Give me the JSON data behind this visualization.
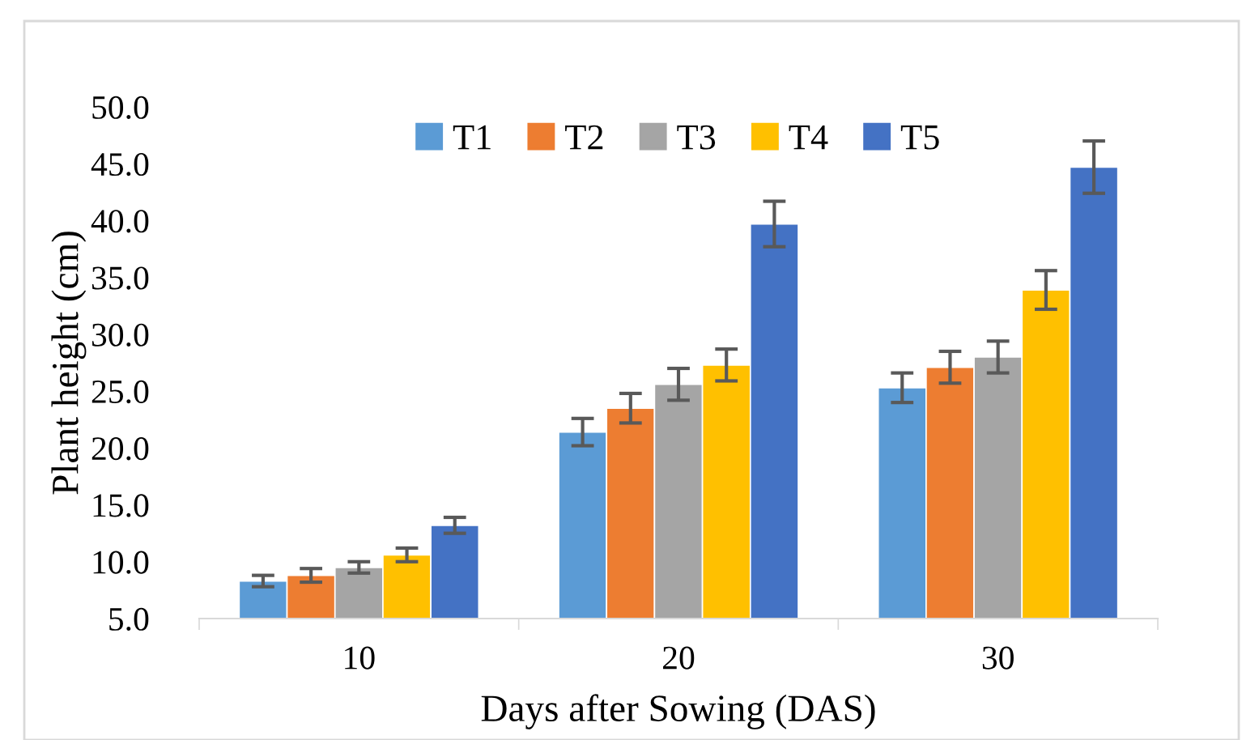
{
  "chart_data": {
    "type": "bar",
    "xlabel": "Days after Sowing (DAS)",
    "ylabel": "Plant height (cm)",
    "categories": [
      "10",
      "20",
      "30"
    ],
    "series": [
      {
        "name": "T1",
        "color": "#5b9bd5",
        "values": [
          8.3,
          21.4,
          25.3
        ],
        "errors": [
          0.5,
          1.2,
          1.3
        ]
      },
      {
        "name": "T2",
        "color": "#ed7d31",
        "values": [
          8.8,
          23.5,
          27.1
        ],
        "errors": [
          0.6,
          1.3,
          1.4
        ]
      },
      {
        "name": "T3",
        "color": "#a5a5a5",
        "values": [
          9.5,
          25.6,
          28.0
        ],
        "errors": [
          0.5,
          1.4,
          1.4
        ]
      },
      {
        "name": "T4",
        "color": "#ffc000",
        "values": [
          10.6,
          27.3,
          33.9
        ],
        "errors": [
          0.6,
          1.4,
          1.7
        ]
      },
      {
        "name": "T5",
        "color": "#4472c4",
        "values": [
          13.2,
          39.7,
          44.7
        ],
        "errors": [
          0.7,
          2.0,
          2.3
        ]
      }
    ],
    "ylim": [
      5,
      50
    ],
    "yticks": [
      {
        "value": 5,
        "label": "5.0"
      },
      {
        "value": 10,
        "label": "10.0"
      },
      {
        "value": 15,
        "label": "15.0"
      },
      {
        "value": 20,
        "label": "20.0"
      },
      {
        "value": 25,
        "label": "25.0"
      },
      {
        "value": 30,
        "label": "30.0"
      },
      {
        "value": 35,
        "label": "35.0"
      },
      {
        "value": 40,
        "label": "40.0"
      },
      {
        "value": 45,
        "label": "45.0"
      },
      {
        "value": 50,
        "label": "50.0"
      }
    ],
    "grid": false,
    "legend": "top"
  }
}
